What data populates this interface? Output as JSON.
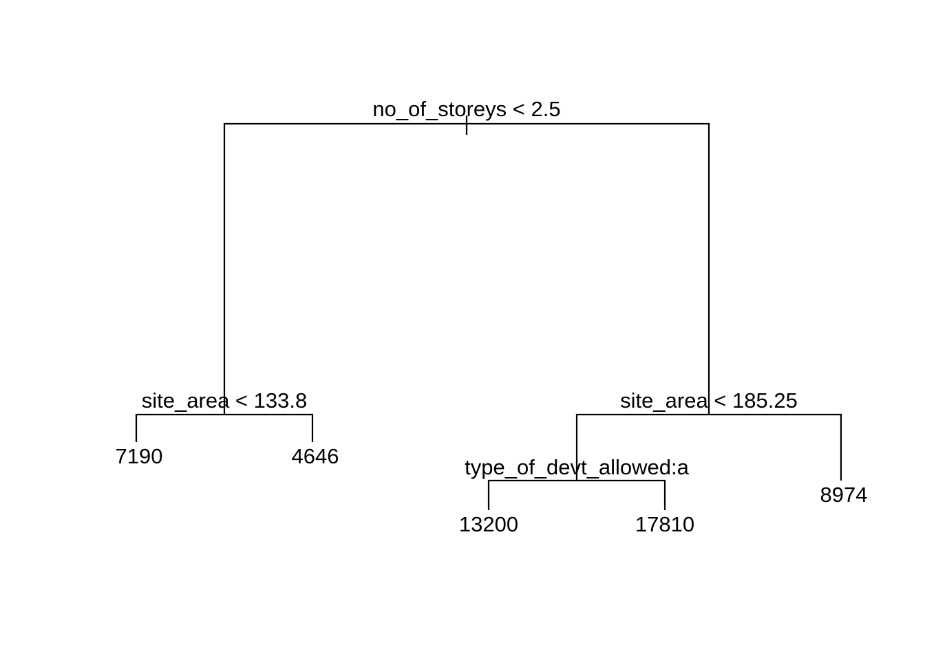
{
  "tree": {
    "root": {
      "split": "no_of_storeys < 2.5"
    },
    "left_node": {
      "split": "site_area < 133.8"
    },
    "right_node": {
      "split": "site_area < 185.25"
    },
    "inner_node": {
      "split": "type_of_devt_allowed:a"
    },
    "leaves": {
      "left_left": "7190",
      "left_right": "4646",
      "inner_left": "13200",
      "inner_right": "17810",
      "right_right": "8974"
    }
  },
  "colors": {
    "line": "#000000",
    "background": "#ffffff"
  }
}
